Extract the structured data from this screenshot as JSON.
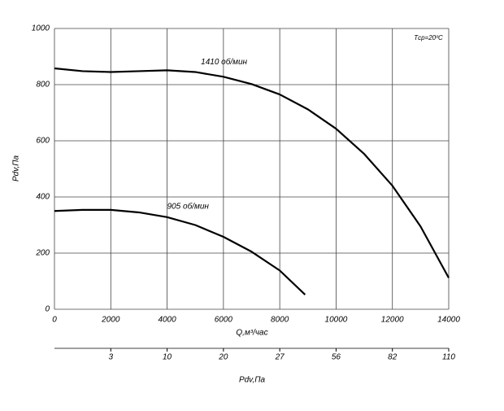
{
  "chart_data": {
    "type": "line",
    "x_label": "Q,м³/час",
    "y_label": "Pdv,Па",
    "x2_label": "Pdv,Па",
    "annotation": "Tср=20ºC",
    "x": [
      0,
      1000,
      2000,
      3000,
      4000,
      5000,
      6000,
      7000,
      8000,
      9000,
      10000,
      11000,
      12000,
      13000,
      14000
    ],
    "series": [
      {
        "name": "1410 об/мин",
        "color": "#000000",
        "x": [
          0,
          1000,
          2000,
          3000,
          4000,
          5000,
          6000,
          7000,
          8000,
          9000,
          10000,
          11000,
          12000,
          13000,
          14000
        ],
        "values": [
          858,
          848,
          845,
          848,
          851,
          845,
          828,
          802,
          765,
          712,
          643,
          553,
          440,
          295,
          112
        ]
      },
      {
        "name": "905 об/мин",
        "color": "#000000",
        "x": [
          0,
          1000,
          2000,
          3000,
          4000,
          5000,
          6000,
          7000,
          8000,
          8900
        ],
        "values": [
          350,
          354,
          354,
          345,
          328,
          300,
          258,
          205,
          138,
          52
        ]
      }
    ],
    "xlim": [
      0,
      14000
    ],
    "ylim": [
      0,
      1000
    ],
    "xticks": [
      0,
      2000,
      4000,
      6000,
      8000,
      10000,
      12000,
      14000
    ],
    "yticks": [
      0,
      200,
      400,
      600,
      800,
      1000
    ],
    "x2ticks": [
      {
        "value": 2000,
        "label": "3"
      },
      {
        "value": 4000,
        "label": "10"
      },
      {
        "value": 6000,
        "label": "20"
      },
      {
        "value": 8000,
        "label": "27"
      },
      {
        "value": 10000,
        "label": "56"
      },
      {
        "value": 12000,
        "label": "82"
      },
      {
        "value": 14000,
        "label": "110"
      }
    ],
    "grid": true
  }
}
